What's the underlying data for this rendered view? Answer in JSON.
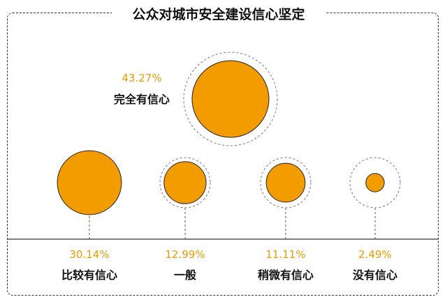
{
  "chart_data": {
    "type": "bubble",
    "title": "公众对城市安全建设信心坚定",
    "categories": [
      "完全有信心",
      "比较有信心",
      "一般",
      "稍微有信心",
      "没有信心"
    ],
    "values": [
      43.27,
      30.14,
      12.99,
      11.11,
      2.49
    ],
    "value_labels": [
      "43.27%",
      "30.14%",
      "12.99%",
      "11.11%",
      "2.49%"
    ],
    "unit": "%"
  },
  "colors": {
    "bubble_fill": "#f39c00",
    "label_orange": "#e89b00",
    "text": "#111111"
  }
}
